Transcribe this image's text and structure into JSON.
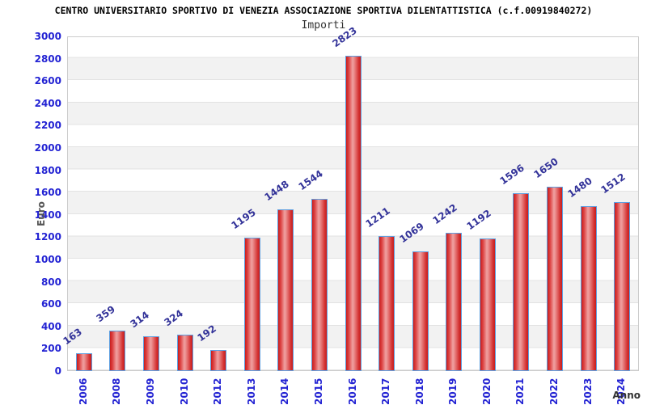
{
  "header": {
    "title": "CENTRO UNIVERSITARIO SPORTIVO DI VENEZIA ASSOCIAZIONE SPORTIVA DILENTATTISTICA (c.f.00919840272)",
    "subtitle": "Importi"
  },
  "chart_data": {
    "type": "bar",
    "title": "CENTRO UNIVERSITARIO SPORTIVO DI VENEZIA ASSOCIAZIONE SPORTIVA DILENTATTISTICA (c.f.00919840272)",
    "subtitle": "Importi",
    "xlabel": "Anno",
    "ylabel": "Euro",
    "categories": [
      "2006",
      "2008",
      "2009",
      "2010",
      "2012",
      "2013",
      "2014",
      "2015",
      "2016",
      "2017",
      "2018",
      "2019",
      "2020",
      "2021",
      "2022",
      "2023",
      "2024"
    ],
    "values": [
      163,
      359,
      314,
      324,
      192,
      1195,
      1448,
      1544,
      2823,
      1211,
      1069,
      1242,
      1192,
      1596,
      1650,
      1480,
      1512
    ],
    "ylim": [
      0,
      3000
    ],
    "ytick_step": 200,
    "grid": "horizontal-bands-alternating",
    "legend": "none",
    "colors": {
      "bar_fill_edge": "#c81d1d",
      "bar_fill_center": "#f0a0a0",
      "bar_border": "#5e9fe0",
      "tick_label": "#2323d3",
      "value_label": "#333399",
      "band_alt": "#f2f2f2",
      "band_base": "#ffffff",
      "plot_border": "#cccccc",
      "title_color": "#000000",
      "axis_title_color": "#555555"
    }
  }
}
